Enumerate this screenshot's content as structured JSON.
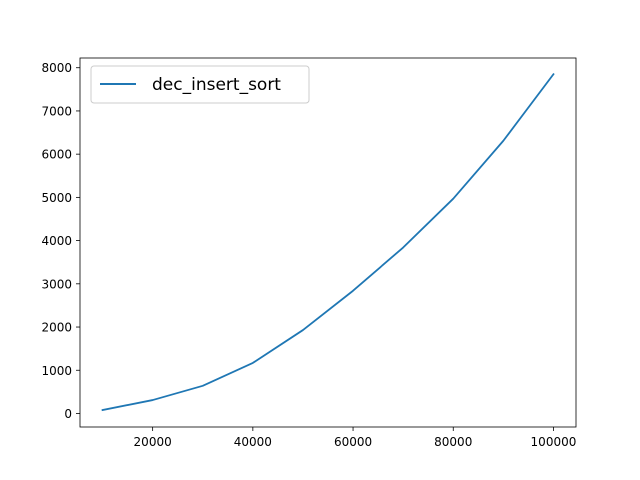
{
  "chart_data": {
    "type": "line",
    "title": "",
    "xlabel": "",
    "ylabel": "",
    "x": [
      10000,
      20000,
      30000,
      40000,
      50000,
      60000,
      70000,
      80000,
      90000,
      100000
    ],
    "series": [
      {
        "name": "dec_insert_sort",
        "color": "#1f77b4",
        "values": [
          80,
          310,
          640,
          1170,
          1930,
          2840,
          3840,
          4970,
          6310,
          7850
        ]
      }
    ],
    "xlim": [
      5500,
      104500
    ],
    "ylim": [
      -313,
      8225
    ],
    "xticks": [
      20000,
      40000,
      60000,
      80000,
      100000
    ],
    "xtick_labels": [
      "20000",
      "40000",
      "60000",
      "80000",
      "100000"
    ],
    "yticks": [
      0,
      1000,
      2000,
      3000,
      4000,
      5000,
      6000,
      7000,
      8000
    ],
    "ytick_labels": [
      "0",
      "1000",
      "2000",
      "3000",
      "4000",
      "5000",
      "6000",
      "7000",
      "8000"
    ],
    "grid": false,
    "legend_position": "top-left"
  }
}
